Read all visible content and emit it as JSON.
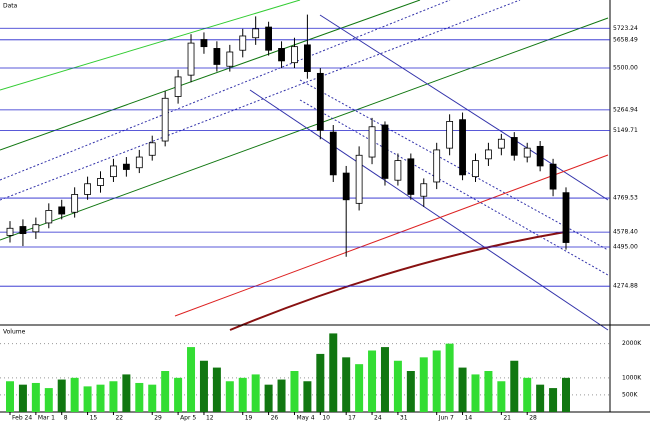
{
  "chart_data": [
    {
      "type": "candlestick",
      "title": "Data",
      "categories": [
        "Feb 24",
        null,
        "Mar 1",
        null,
        "8",
        null,
        "15",
        null,
        "22",
        null,
        null,
        "29",
        null,
        "Apr 5",
        null,
        "12",
        null,
        null,
        "19",
        null,
        "26",
        null,
        "May 4",
        null,
        "10",
        null,
        "17",
        null,
        "24",
        null,
        "31",
        null,
        null,
        "Jun 7",
        null,
        "14",
        null,
        null,
        "21",
        null,
        "28",
        null,
        null,
        null
      ],
      "open": [
        4560,
        4610,
        4580,
        4630,
        4720,
        4690,
        4790,
        4840,
        4890,
        4960,
        4940,
        5010,
        5090,
        5340,
        5460,
        5660,
        5610,
        5510,
        5600,
        5670,
        5730,
        5610,
        5530,
        5630,
        5470,
        5140,
        4910,
        4740,
        5000,
        5180,
        4870,
        4990,
        4780,
        4860,
        5050,
        5210,
        4890,
        4990,
        5050,
        5110,
        5000,
        5060,
        4960,
        4800
      ],
      "high": [
        4640,
        4650,
        4660,
        4740,
        4760,
        4830,
        4890,
        4920,
        4990,
        5000,
        5040,
        5120,
        5370,
        5490,
        5690,
        5700,
        5650,
        5630,
        5720,
        5790,
        5760,
        5650,
        5670,
        5800,
        5500,
        5180,
        4950,
        5060,
        5220,
        5200,
        5020,
        5020,
        4880,
        5080,
        5240,
        5250,
        5020,
        5080,
        5130,
        5140,
        5080,
        5090,
        4990,
        4830
      ],
      "low": [
        4520,
        4500,
        4540,
        4600,
        4650,
        4660,
        4760,
        4800,
        4860,
        4890,
        4910,
        4980,
        5060,
        5300,
        5420,
        5580,
        5480,
        5480,
        5560,
        5630,
        5570,
        5500,
        5500,
        5440,
        5100,
        4860,
        4440,
        4700,
        4960,
        4840,
        4840,
        4760,
        4720,
        4820,
        5010,
        4870,
        4860,
        4950,
        5010,
        4980,
        4970,
        4920,
        4780,
        4480
      ],
      "close": [
        4600,
        4570,
        4620,
        4700,
        4680,
        4790,
        4850,
        4880,
        4950,
        4930,
        5000,
        5080,
        5330,
        5450,
        5640,
        5620,
        5520,
        5590,
        5680,
        5720,
        5600,
        5540,
        5620,
        5480,
        5150,
        4900,
        4760,
        5010,
        5170,
        4880,
        4980,
        4790,
        4850,
        5040,
        5200,
        4900,
        4980,
        5040,
        5100,
        5010,
        5050,
        4950,
        4820,
        4520
      ],
      "ylim": [
        4068,
        5882
      ],
      "yticks": [
        5723.24,
        5658.49,
        {
          "value": 5500,
          "label": "5500.00"
        },
        5264.94,
        5149.71,
        4769.53,
        {
          "value": 4578.4,
          "label": "4578.40"
        },
        {
          "value": 4495,
          "label": "4495.00"
        },
        4274.88
      ],
      "up_color": "#ffffff",
      "down_color": "#000000",
      "grid_color": "#2222cc"
    },
    {
      "type": "bar",
      "title": "Volume",
      "values": [
        900,
        800,
        850,
        700,
        950,
        1000,
        750,
        800,
        900,
        1100,
        850,
        800,
        1200,
        1000,
        1900,
        1500,
        1300,
        900,
        1000,
        1100,
        800,
        950,
        1200,
        900,
        1700,
        2300,
        1600,
        1400,
        1800,
        1900,
        1500,
        1200,
        1600,
        1800,
        2000,
        1300,
        1100,
        1200,
        900,
        1500,
        1000,
        800,
        700,
        1000
      ],
      "ylim": [
        0,
        2400
      ],
      "yticks": [
        {
          "value": 2000,
          "label": "2000K"
        },
        {
          "value": 1000,
          "label": "1000K"
        },
        {
          "value": 500,
          "label": "500K"
        }
      ],
      "up_color": "#33dd33",
      "down_color": "#117711"
    }
  ]
}
